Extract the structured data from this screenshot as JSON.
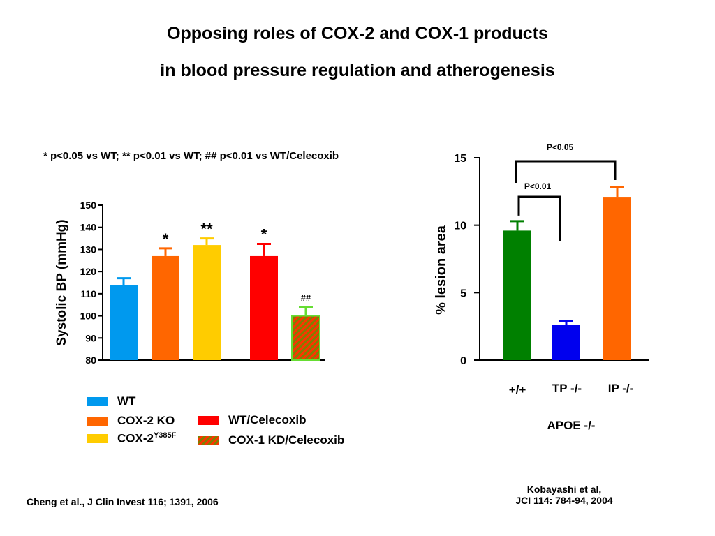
{
  "title_line1": "Opposing roles of COX-2 and COX-1 products",
  "title_line2": "in blood pressure regulation and atherogenesis",
  "significance_note": "* p<0.05 vs WT; ** p<0.01 vs WT; ## p<0.01 vs WT/Celecoxib",
  "legend": {
    "wt": "WT",
    "cox2ko": "COX-2 KO",
    "cox2y_base": "COX-2",
    "cox2y_sup": "Y385F",
    "celecoxib": "WT/Celecoxib",
    "cox1kd": "COX-1 KD/Celecoxib"
  },
  "reference_left": "Cheng et al., J Clin Invest 116; 1391, 2006",
  "reference_right_line1": "Kobayashi et al,",
  "reference_right_line2": "JCI 114: 784-94, 2004",
  "colors": {
    "blue": "#0099ee",
    "orange": "#ff6600",
    "yellow": "#ffcc00",
    "red": "#ff0000",
    "green": "#008000",
    "darkblue": "#0000ee",
    "olive": "#808000",
    "lightgreen": "#66dd33"
  },
  "chart_data": [
    {
      "type": "bar",
      "ylabel": "Systolic BP (mmHg)",
      "ylim": [
        80,
        150
      ],
      "yticks": [
        80,
        90,
        100,
        110,
        120,
        130,
        140,
        150
      ],
      "series": [
        {
          "name": "WT",
          "value": 114,
          "error": 3,
          "color": "#0099ee",
          "pattern": false,
          "annotation": ""
        },
        {
          "name": "COX-2 KO",
          "value": 127,
          "error": 3.5,
          "color": "#ff6600",
          "pattern": false,
          "annotation": "*"
        },
        {
          "name": "COX-2 Y385F",
          "value": 132,
          "error": 3,
          "color": "#ffcc00",
          "pattern": false,
          "annotation": "**"
        },
        {
          "name": "WT/Celecoxib",
          "value": 127,
          "error": 5.5,
          "color": "#ff0000",
          "pattern": false,
          "annotation": "*"
        },
        {
          "name": "COX-1 KD/Celecoxib",
          "value": 100,
          "error": 4,
          "color": "#808000",
          "pattern": true,
          "annotation": "##"
        }
      ]
    },
    {
      "type": "bar",
      "ylabel": "% lesion area",
      "ylim": [
        0,
        15
      ],
      "yticks": [
        0,
        5,
        10,
        15
      ],
      "categories": [
        "+/+",
        "TP -/-",
        "IP -/-"
      ],
      "values": [
        9.6,
        2.6,
        12.1
      ],
      "errors": [
        0.7,
        0.3,
        0.7
      ],
      "colors": [
        "#008000",
        "#0000ee",
        "#ff6600"
      ],
      "group_label": "APOE -/-",
      "comparisons": [
        {
          "label": "P<0.01",
          "from": 0,
          "to": 1
        },
        {
          "label": "P<0.05",
          "from": 0,
          "to": 2
        }
      ]
    }
  ]
}
